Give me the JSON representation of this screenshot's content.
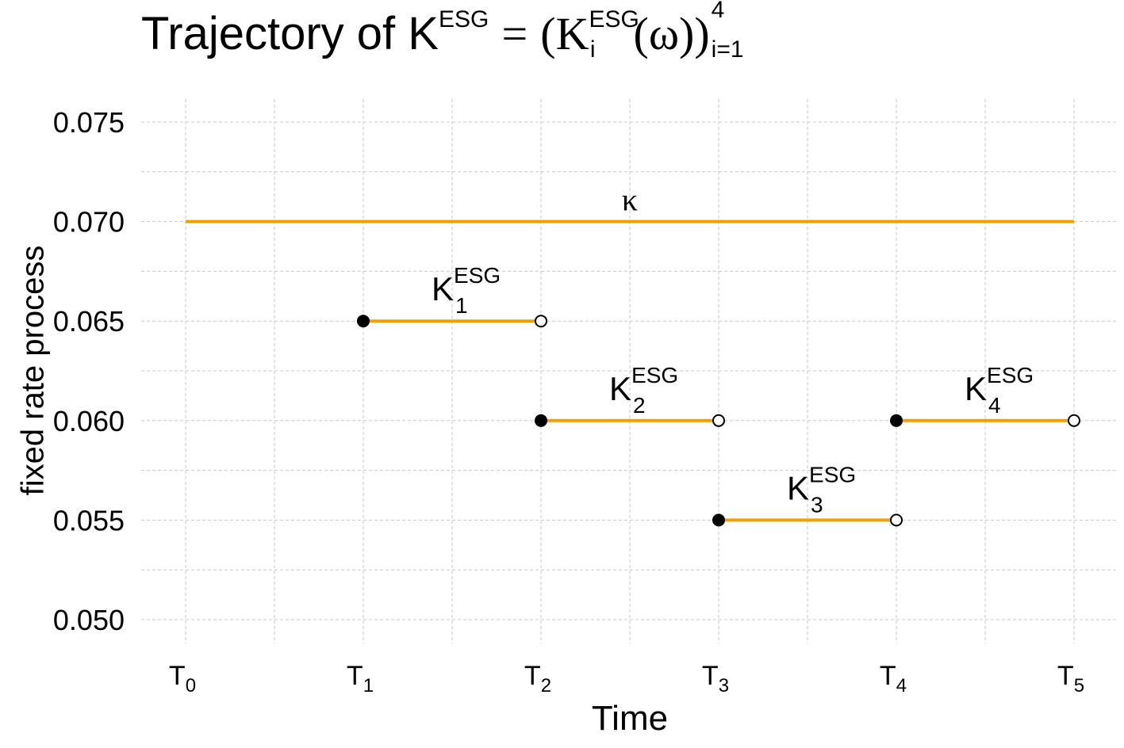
{
  "title": {
    "prefix": "Trajectory of K",
    "sup": "ESG",
    "eq": "=",
    "open": "(K",
    "inner_sup": "ESG",
    "inner_sub": "i",
    "arg": "(ω))",
    "upper": "4",
    "lower": "i=1"
  },
  "chart_data": {
    "type": "line",
    "xlabel": "Time",
    "ylabel": "fixed rate process",
    "x_ticks": [
      "T0",
      "T1",
      "T2",
      "T3",
      "T4",
      "T5"
    ],
    "x_tick_base": "T",
    "x_tick_subs": [
      "0",
      "1",
      "2",
      "3",
      "4",
      "5"
    ],
    "xlim": [
      0,
      5
    ],
    "ylim": [
      0.05,
      0.075
    ],
    "y_ticks": [
      "0.050",
      "0.055",
      "0.060",
      "0.065",
      "0.070",
      "0.075"
    ],
    "grid": true,
    "kappa": {
      "label": "κ",
      "value": 0.07,
      "x": [
        0,
        5
      ]
    },
    "series": [
      {
        "label": "K",
        "sup": "ESG",
        "sub": "1",
        "x_start": 1,
        "x_end": 2,
        "value": 0.065
      },
      {
        "label": "K",
        "sup": "ESG",
        "sub": "2",
        "x_start": 2,
        "x_end": 3,
        "value": 0.06
      },
      {
        "label": "K",
        "sup": "ESG",
        "sub": "3",
        "x_start": 3,
        "x_end": 4,
        "value": 0.055
      },
      {
        "label": "K",
        "sup": "ESG",
        "sub": "4",
        "x_start": 4,
        "x_end": 5,
        "value": 0.06
      }
    ],
    "line_color": "#f0a000",
    "point_color": "#000000"
  }
}
